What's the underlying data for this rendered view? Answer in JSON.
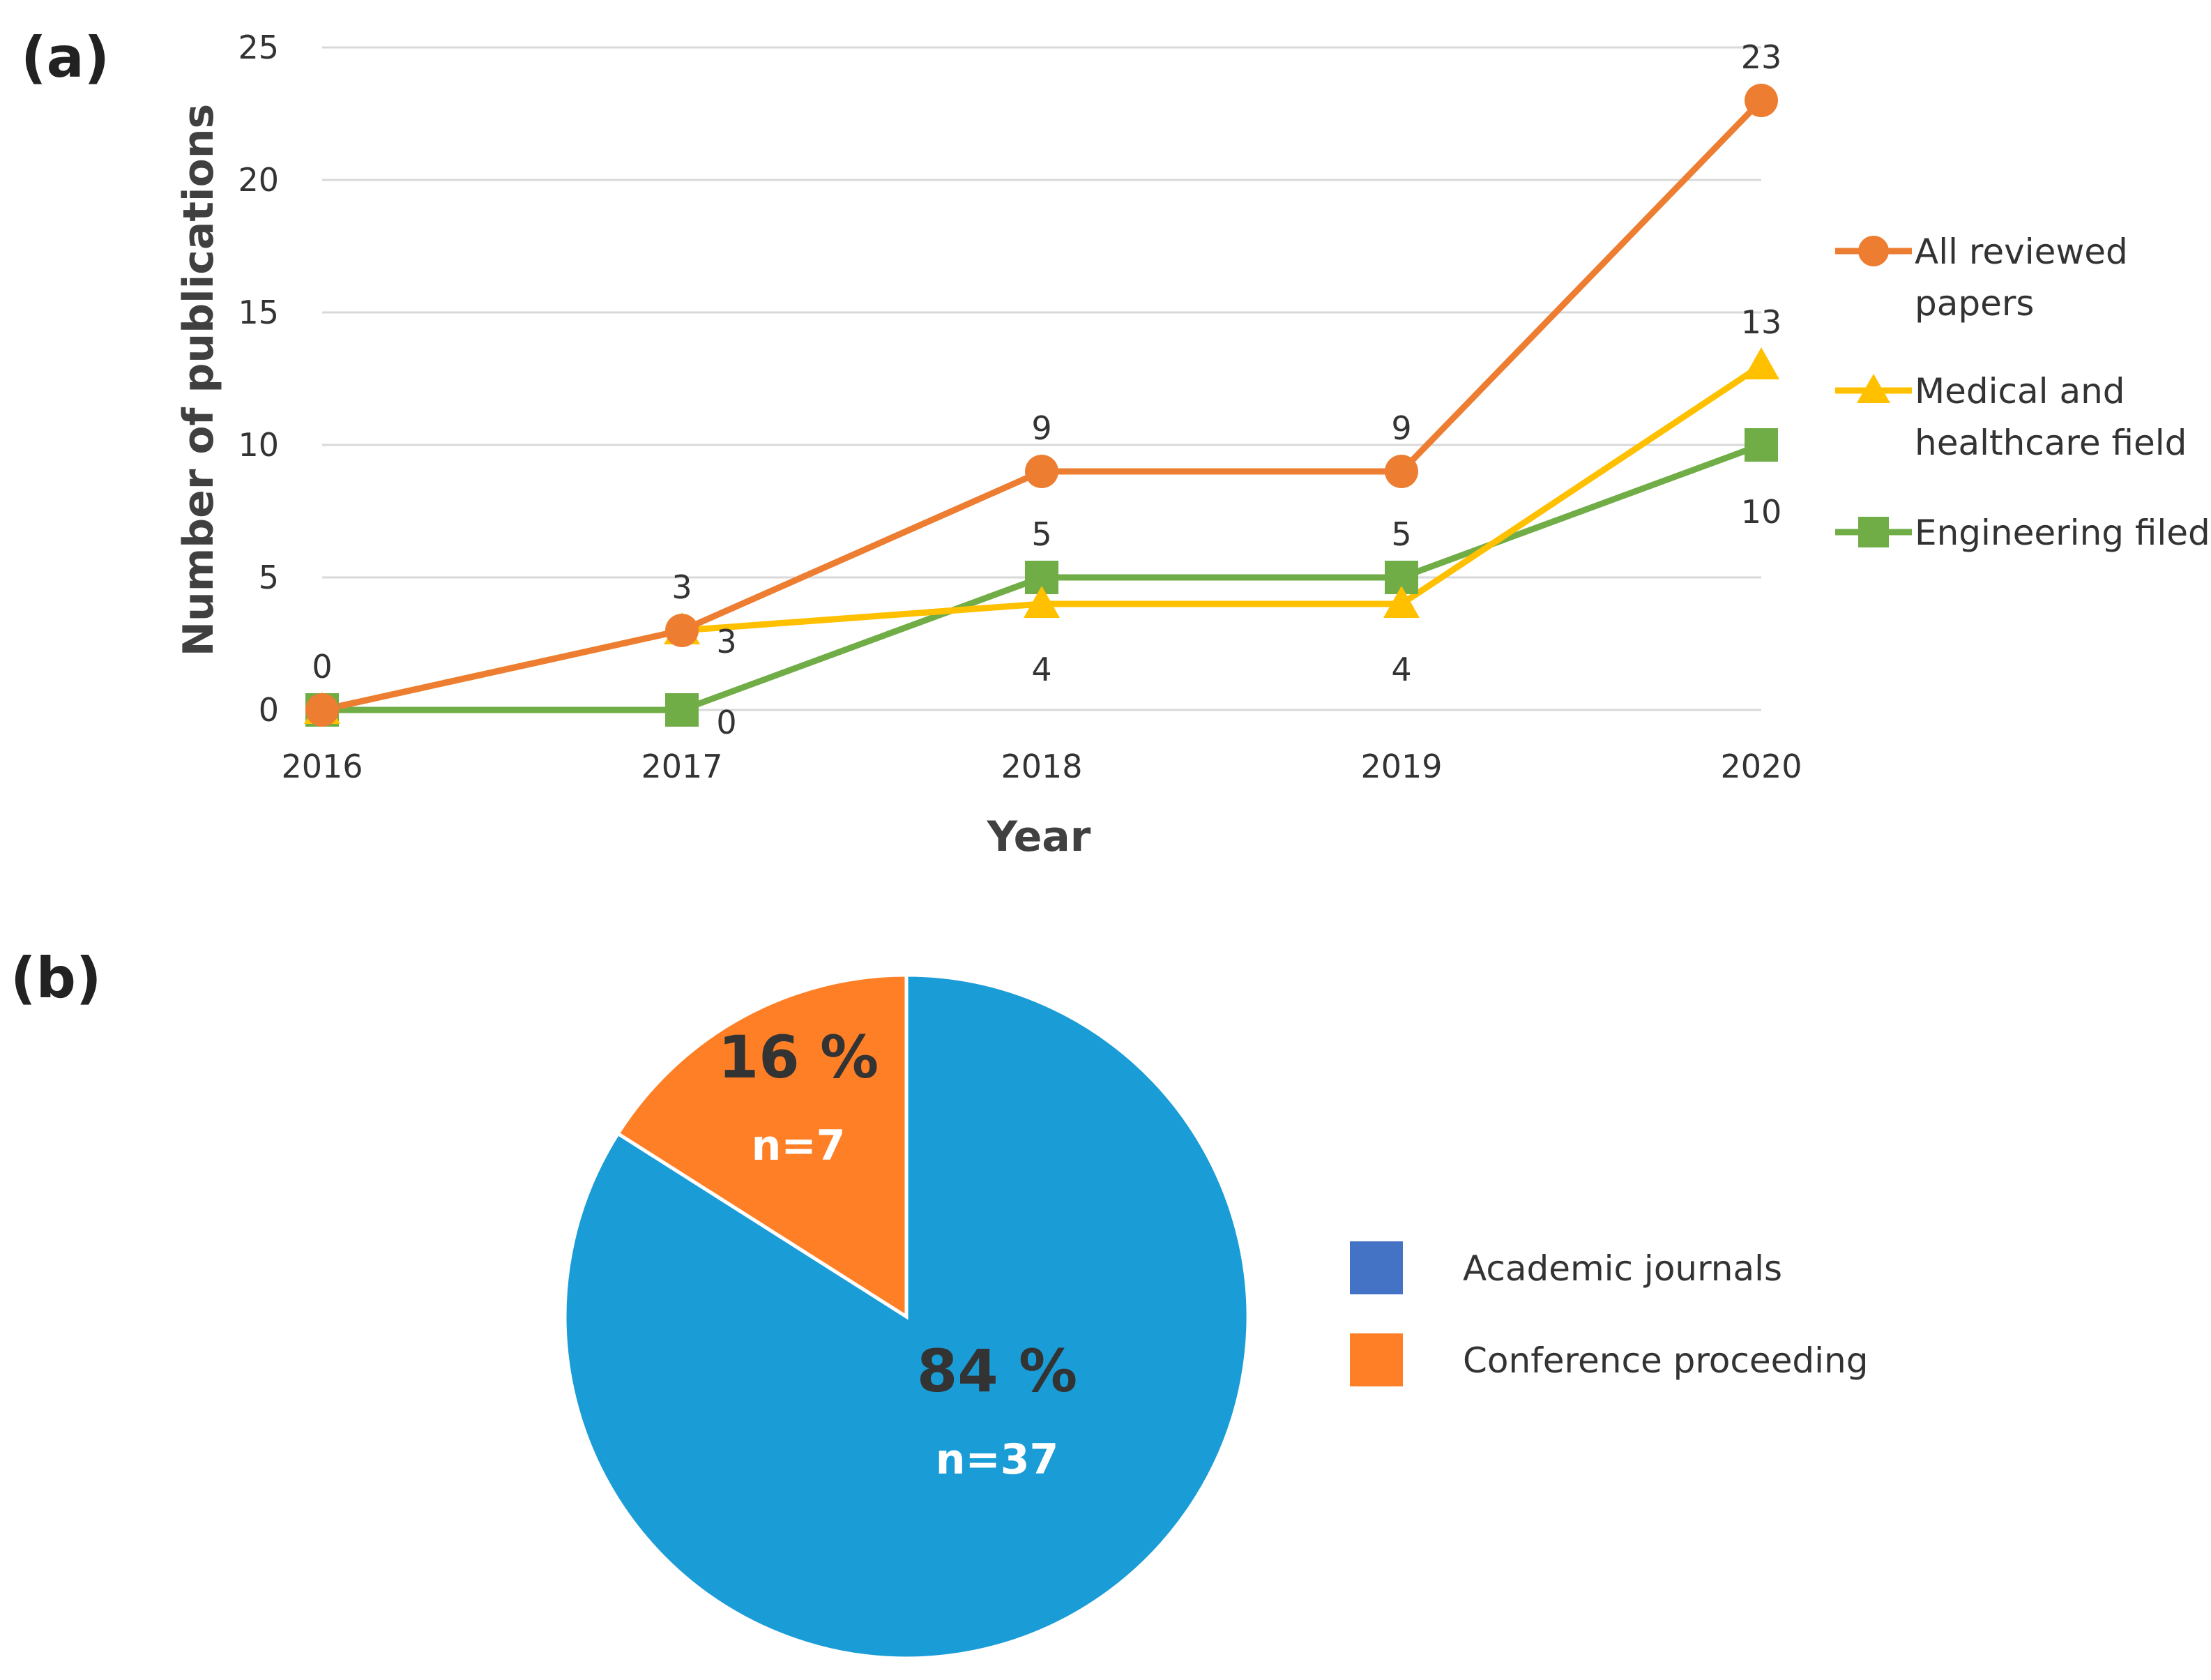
{
  "panels": {
    "a": "(a)",
    "b": "(b)"
  },
  "chart_data": [
    {
      "type": "line",
      "title": "",
      "xlabel": "Year",
      "ylabel": "Number of publications",
      "x": [
        "2016",
        "2017",
        "2018",
        "2019",
        "2020"
      ],
      "ylim": [
        0,
        25
      ],
      "yticks": [
        0,
        5,
        10,
        15,
        20,
        25
      ],
      "grid": true,
      "legend_position": "right",
      "series": [
        {
          "name": "All reviewed papers",
          "values": [
            0,
            3,
            9,
            9,
            23
          ],
          "color": "#ED7D31",
          "marker": "circle",
          "labels": [
            "0",
            "3",
            "9",
            "9",
            "23"
          ],
          "label_position": "above"
        },
        {
          "name": "Medical and healthcare field",
          "values": [
            0,
            3,
            4,
            4,
            13
          ],
          "color": "#FFC000",
          "marker": "triangle",
          "labels": [
            "",
            "3",
            "4",
            "4",
            "13"
          ],
          "label_position": "mixed"
        },
        {
          "name": "Engineering filed",
          "values": [
            0,
            0,
            5,
            5,
            10
          ],
          "color": "#70AD47",
          "marker": "square",
          "labels": [
            "",
            "0",
            "5",
            "5",
            "10"
          ],
          "label_position": "mixed"
        }
      ]
    },
    {
      "type": "pie",
      "title": "",
      "legend_position": "right",
      "slices": [
        {
          "name": "Academic journals",
          "value": 84,
          "count": 37,
          "pct_label": "84 %",
          "n_label": "n=37",
          "color": "#1A9CD7",
          "legend_color": "#4472C4"
        },
        {
          "name": "Conference proceeding",
          "value": 16,
          "count": 7,
          "pct_label": "16 %",
          "n_label": "n=7",
          "color": "#FF7F27",
          "legend_color": "#FF7F27"
        }
      ]
    }
  ]
}
